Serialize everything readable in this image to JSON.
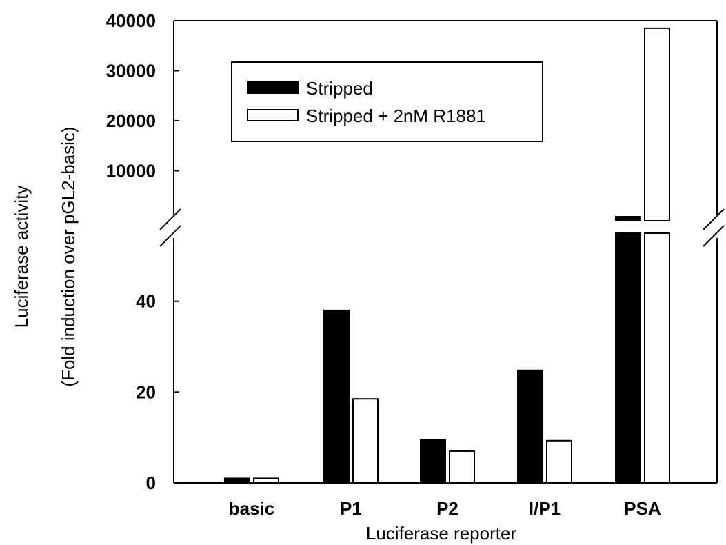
{
  "chart_data": {
    "type": "bar",
    "title": "",
    "xlabel": "Luciferase reporter",
    "ylabel_line1": "Luciferase activity",
    "ylabel_line2": "(Fold induction over pGL2-basic)",
    "categories": [
      "basic",
      "P1",
      "P2",
      "I/P1",
      "PSA"
    ],
    "series": [
      {
        "name": "Stripped",
        "color": "#000000",
        "values": [
          1,
          38,
          9.5,
          24.8,
          600
        ]
      },
      {
        "name": "Stripped + 2nM R1881",
        "color": "#ffffff",
        "values": [
          1,
          18.5,
          7,
          9.3,
          38500
        ]
      }
    ],
    "axis_break": true,
    "lower_segment": {
      "ylim": [
        0,
        55
      ],
      "ticks": [
        "0",
        "20",
        "40"
      ],
      "tick_values": [
        0,
        20,
        40
      ]
    },
    "upper_segment": {
      "ylim": [
        0,
        40000
      ],
      "ticks": [
        "10000",
        "20000",
        "30000",
        "40000"
      ],
      "tick_values": [
        10000,
        20000,
        30000,
        40000
      ]
    },
    "legend_position": "top-left",
    "grid": false
  }
}
